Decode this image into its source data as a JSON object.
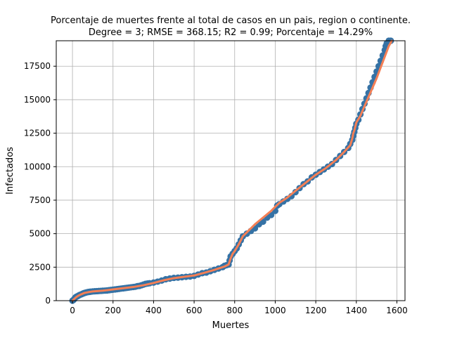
{
  "chart_data": {
    "type": "scatter",
    "title": "Porcentaje de muertes frente al total de casos en un pais, region o continente.",
    "subtitle": "Degree = 3; RMSE = 368.15; R2 = 0.99; Porcentaje = 14.29%",
    "xlabel": "Muertes",
    "ylabel": "Infectados",
    "xlim": [
      -80,
      1640
    ],
    "ylim": [
      0,
      19400
    ],
    "xticks": [
      0,
      200,
      400,
      600,
      800,
      1000,
      1200,
      1400,
      1600
    ],
    "yticks": [
      0,
      2500,
      5000,
      7500,
      10000,
      12500,
      15000,
      17500
    ],
    "grid": true,
    "colors": {
      "points": "#3572a5",
      "fit": "#f47f55",
      "grid": "#b0b0b0"
    },
    "series": [
      {
        "kind": "scatter",
        "x": [
          0,
          5,
          10,
          15,
          20,
          25,
          30,
          35,
          40,
          45,
          50,
          55,
          60,
          65,
          70,
          75,
          80,
          85,
          90,
          100,
          110,
          120,
          130,
          140,
          150,
          160,
          170,
          180,
          190,
          200,
          210,
          220,
          230,
          240,
          250,
          260,
          270,
          280,
          290,
          300,
          310,
          320,
          330,
          340,
          350,
          360,
          370,
          380,
          400,
          420,
          440,
          460,
          480,
          500,
          520,
          540,
          560,
          580,
          600,
          620,
          640,
          660,
          680,
          700,
          720,
          740,
          750,
          760,
          770,
          775,
          780,
          790,
          800,
          810,
          820,
          830,
          840,
          860,
          880,
          900,
          920,
          940,
          960,
          980,
          1000,
          1010,
          1020,
          1040,
          1060,
          1080,
          1100,
          1120,
          1140,
          1160,
          1180,
          1200,
          1220,
          1240,
          1260,
          1280,
          1300,
          1320,
          1340,
          1360,
          1370,
          1380,
          1385,
          1390,
          1395,
          1400,
          1410,
          1420,
          1430,
          1440,
          1450,
          1460,
          1470,
          1480,
          1490,
          1500,
          1510,
          1520,
          1530,
          1540,
          1545,
          1550,
          1560,
          1570
        ],
        "y": [
          0,
          50,
          150,
          250,
          300,
          330,
          380,
          420,
          450,
          480,
          520,
          550,
          580,
          600,
          620,
          640,
          650,
          660,
          670,
          690,
          700,
          710,
          720,
          730,
          740,
          750,
          760,
          780,
          800,
          820,
          840,
          860,
          880,
          900,
          920,
          940,
          960,
          980,
          1000,
          1020,
          1040,
          1080,
          1100,
          1150,
          1200,
          1250,
          1280,
          1300,
          1350,
          1420,
          1500,
          1600,
          1650,
          1700,
          1720,
          1750,
          1780,
          1800,
          1850,
          1950,
          2050,
          2100,
          2200,
          2300,
          2400,
          2500,
          2600,
          2650,
          2700,
          3000,
          3300,
          3500,
          3700,
          3900,
          4200,
          4500,
          4800,
          5000,
          5200,
          5400,
          5700,
          5900,
          6200,
          6400,
          6700,
          7100,
          7200,
          7400,
          7600,
          7800,
          8100,
          8400,
          8700,
          8900,
          9200,
          9400,
          9600,
          9800,
          10000,
          10200,
          10500,
          10800,
          11100,
          11400,
          11700,
          12000,
          12300,
          12600,
          12900,
          13200,
          13500,
          13900,
          14300,
          14700,
          15100,
          15500,
          15900,
          16300,
          16700,
          17100,
          17500,
          17900,
          18300,
          18700,
          19000,
          19200,
          19400,
          19500
        ]
      },
      {
        "kind": "line",
        "x": [
          0,
          10,
          20,
          30,
          40,
          50,
          60,
          80,
          100,
          150,
          200,
          250,
          300,
          350,
          400,
          450,
          500,
          550,
          600,
          650,
          700,
          750,
          770,
          780,
          790,
          800,
          820,
          840,
          860,
          880,
          900,
          920,
          940,
          960,
          980,
          1000,
          1010,
          1020,
          1040,
          1060,
          1080,
          1100,
          1150,
          1200,
          1250,
          1300,
          1340,
          1370,
          1380,
          1385,
          1390,
          1395,
          1400,
          1420,
          1440,
          1460,
          1480,
          1500,
          1520,
          1540,
          1560,
          1575
        ],
        "y": [
          0,
          150,
          280,
          380,
          450,
          520,
          580,
          640,
          690,
          750,
          840,
          930,
          1020,
          1150,
          1320,
          1520,
          1680,
          1780,
          1880,
          2080,
          2300,
          2550,
          2700,
          3150,
          3500,
          3700,
          4200,
          4800,
          5100,
          5400,
          5700,
          5950,
          6200,
          6450,
          6700,
          7000,
          7150,
          7300,
          7500,
          7700,
          7950,
          8200,
          8800,
          9400,
          9900,
          10500,
          11100,
          11600,
          12100,
          12500,
          12700,
          13000,
          13300,
          13800,
          14500,
          15200,
          15900,
          16600,
          17400,
          18200,
          19000,
          19500
        ]
      }
    ]
  }
}
